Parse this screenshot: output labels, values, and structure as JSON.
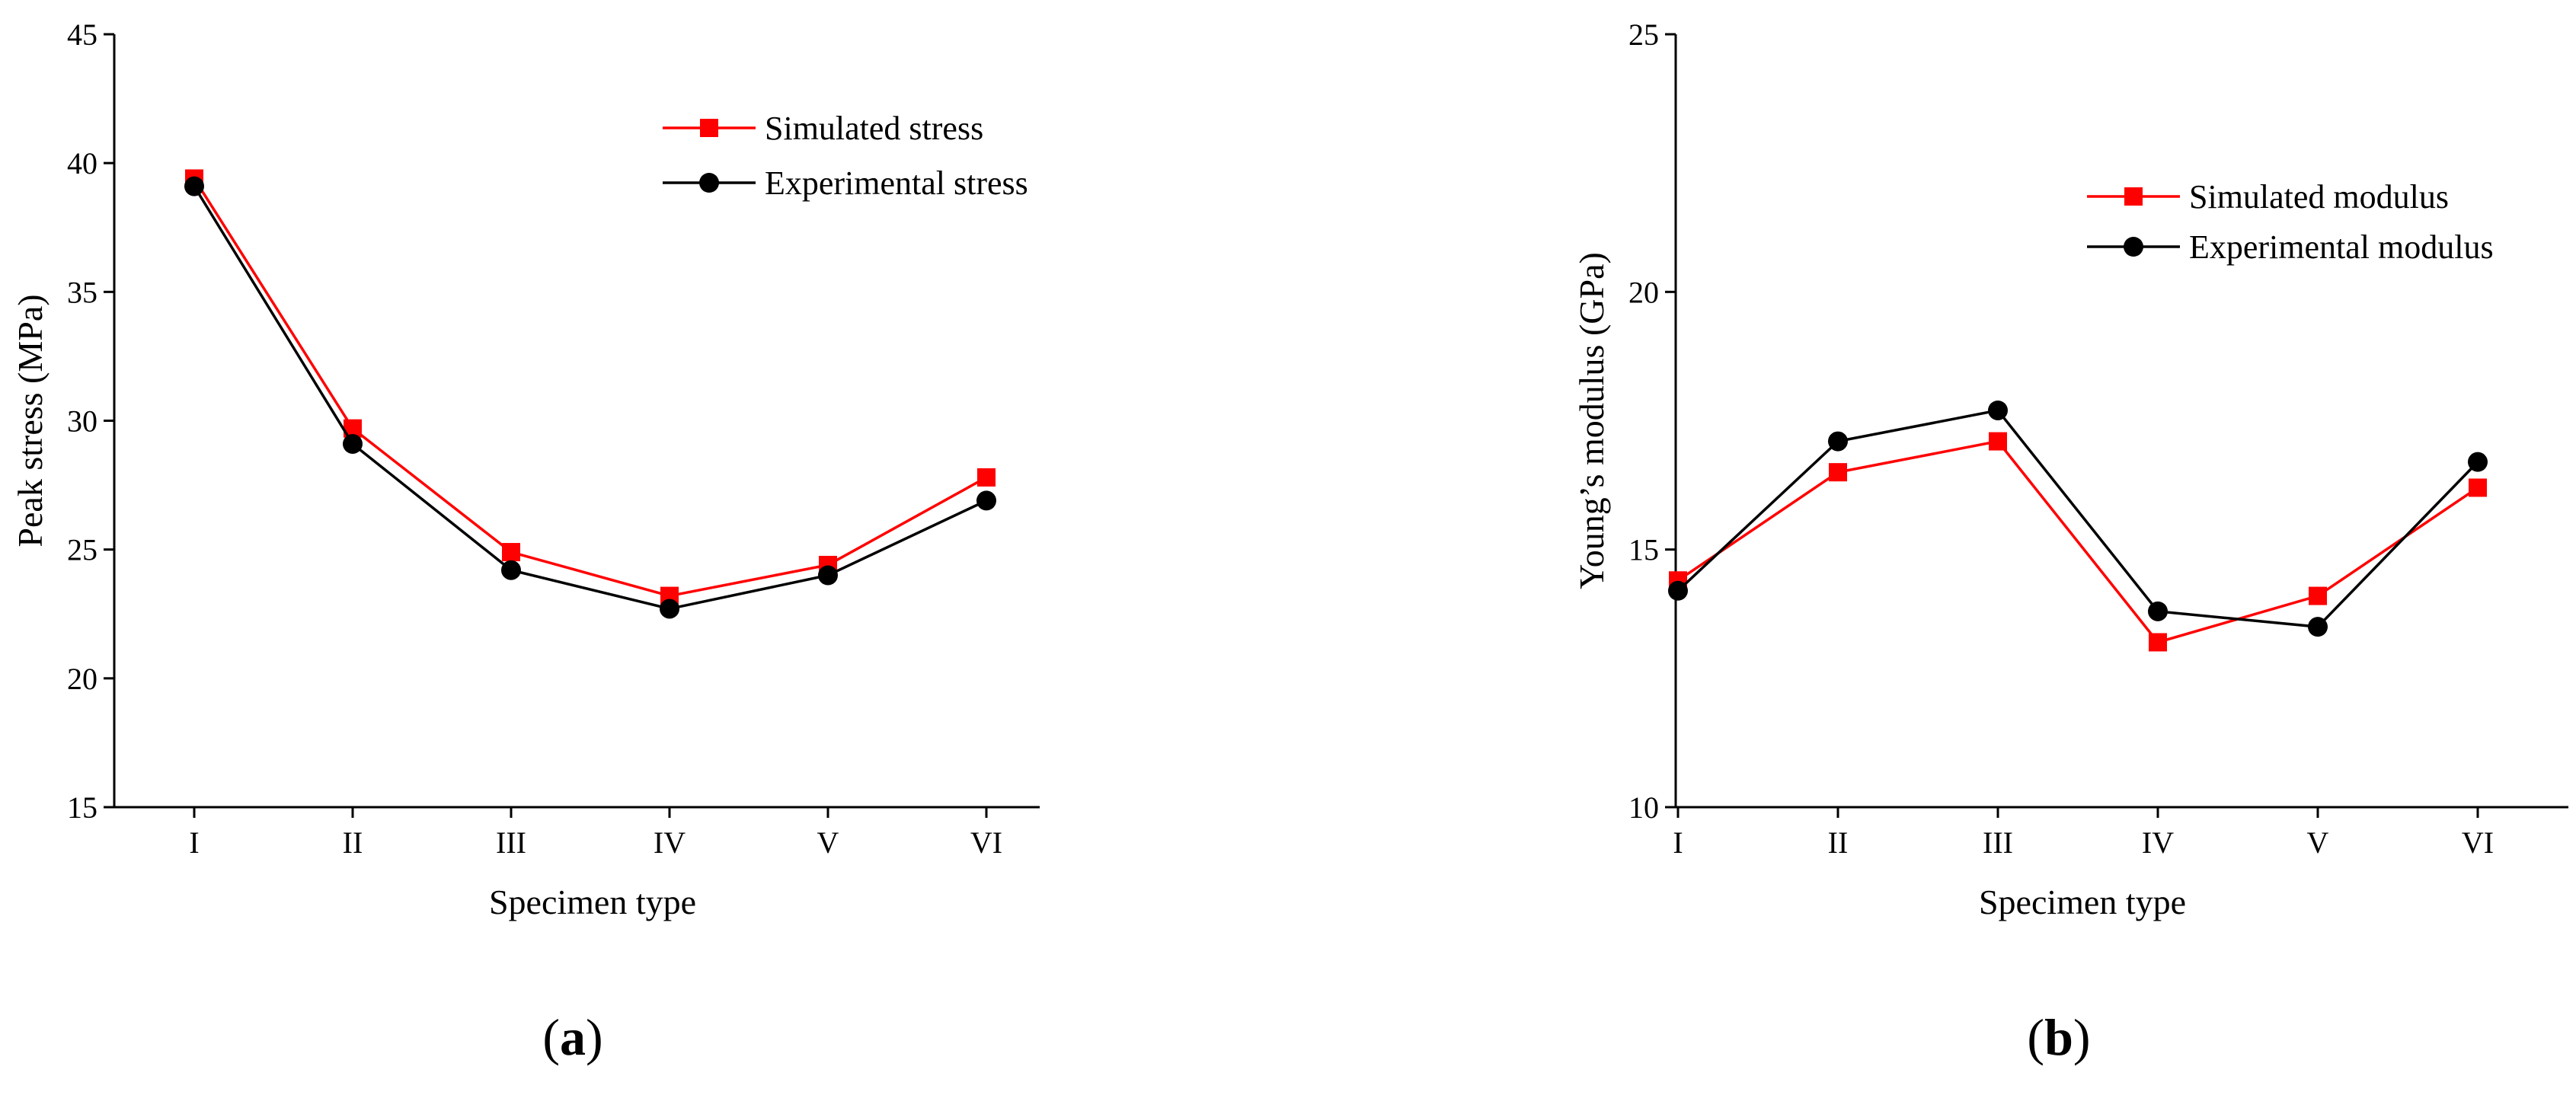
{
  "chart_data": [
    {
      "type": "line",
      "panel_label_parts": [
        "(",
        "a",
        ")"
      ],
      "xlabel": "Specimen type",
      "ylabel": "Peak stress (MPa)",
      "categories": [
        "I",
        "II",
        "III",
        "IV",
        "V",
        "VI"
      ],
      "ylim": [
        15,
        45
      ],
      "yticks": [
        15,
        20,
        25,
        30,
        35,
        40,
        45
      ],
      "legend_position": "top-right",
      "series": [
        {
          "name": "Simulated stress",
          "color": "#ff0000",
          "marker": "square",
          "values": [
            39.4,
            29.7,
            24.9,
            23.2,
            24.4,
            27.8
          ]
        },
        {
          "name": "Experimental stress",
          "color": "#000000",
          "marker": "circle",
          "values": [
            39.1,
            29.1,
            24.2,
            22.7,
            24.0,
            26.9
          ]
        }
      ]
    },
    {
      "type": "line",
      "panel_label_parts": [
        "(",
        "b",
        ")"
      ],
      "xlabel": "Specimen type",
      "ylabel": "Young’s modulus (GPa)",
      "categories": [
        "I",
        "II",
        "III",
        "IV",
        "V",
        "VI"
      ],
      "ylim": [
        10,
        25
      ],
      "yticks": [
        10,
        15,
        20,
        25
      ],
      "legend_position": "center-right",
      "series": [
        {
          "name": "Simulated modulus",
          "color": "#ff0000",
          "marker": "square",
          "values": [
            14.4,
            16.5,
            17.1,
            13.2,
            14.1,
            16.2
          ]
        },
        {
          "name": "Experimental modulus",
          "color": "#000000",
          "marker": "circle",
          "values": [
            14.2,
            17.1,
            17.7,
            13.8,
            13.5,
            16.7
          ]
        }
      ]
    }
  ]
}
